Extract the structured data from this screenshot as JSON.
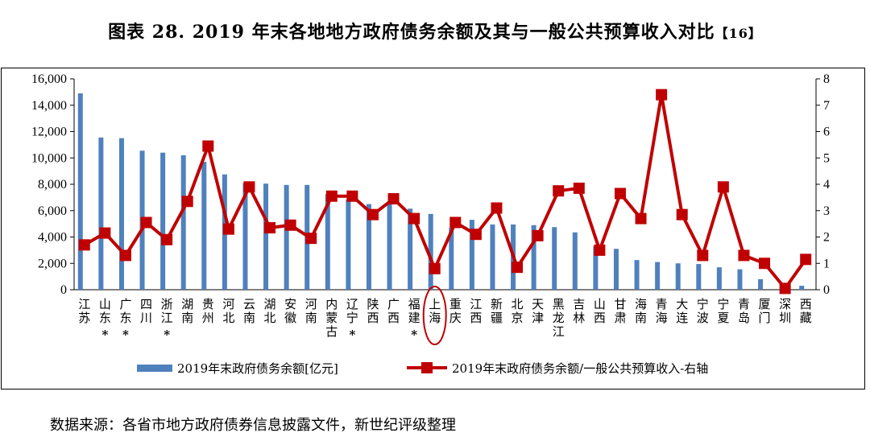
{
  "title": "图表 28. 2019 年末各地地方政府债务余额及其与一般公共预算收入对比",
  "title_ref": "【16】",
  "source": "数据来源：各省市地方政府债券信息披露文件，新世纪评级整理",
  "colors": {
    "bar": "#4f81bd",
    "line": "#c00000",
    "highlight": "#c00000"
  },
  "chart_data": {
    "type": "bar",
    "categories": [
      "江苏",
      "山东*",
      "广东*",
      "四川",
      "浙江*",
      "湖南",
      "贵州",
      "河北",
      "云南",
      "湖北",
      "安徽",
      "河南",
      "内蒙古",
      "辽宁*",
      "陕西",
      "广西",
      "福建*",
      "上海",
      "重庆",
      "江西",
      "新疆",
      "北京",
      "天津",
      "黑龙江",
      "吉林",
      "山西",
      "甘肃",
      "海南",
      "青海",
      "大连",
      "宁波",
      "宁夏",
      "青岛",
      "厦门",
      "深圳",
      "西藏"
    ],
    "series": [
      {
        "name": "2019年末政府债务余额[亿元]",
        "type": "bar",
        "axis": "left",
        "values": [
          14900,
          11550,
          11500,
          10550,
          10400,
          10200,
          9700,
          8750,
          8100,
          8050,
          7950,
          7950,
          7250,
          6850,
          6500,
          6500,
          6150,
          5750,
          4700,
          5300,
          4950,
          4950,
          4900,
          4750,
          4350,
          3300,
          3100,
          2250,
          2100,
          2000,
          1950,
          1700,
          1550,
          800,
          50,
          300
        ]
      },
      {
        "name": "2019年末政府债务余额/一般公共预算收入-右轴",
        "type": "line",
        "axis": "right",
        "values": [
          1.7,
          2.15,
          1.3,
          2.55,
          1.9,
          3.35,
          5.45,
          2.3,
          3.9,
          2.35,
          2.45,
          1.95,
          3.55,
          3.55,
          2.85,
          3.45,
          2.7,
          0.8,
          2.55,
          2.1,
          3.1,
          0.85,
          2.05,
          3.75,
          3.85,
          1.5,
          3.65,
          2.7,
          7.4,
          2.85,
          1.3,
          3.9,
          1.3,
          1.0,
          0.05,
          1.15
        ]
      }
    ],
    "y_left": {
      "ylim": [
        0,
        16000
      ],
      "ticks": [
        "0",
        "2,000",
        "4,000",
        "6,000",
        "8,000",
        "10,000",
        "12,000",
        "14,000",
        "16,000"
      ]
    },
    "y_right": {
      "ylim": [
        0,
        8
      ],
      "ticks": [
        "0",
        "1",
        "2",
        "3",
        "4",
        "5",
        "6",
        "7",
        "8"
      ]
    },
    "highlighted_category": "上海",
    "legend_position": "bottom",
    "grid": false
  }
}
